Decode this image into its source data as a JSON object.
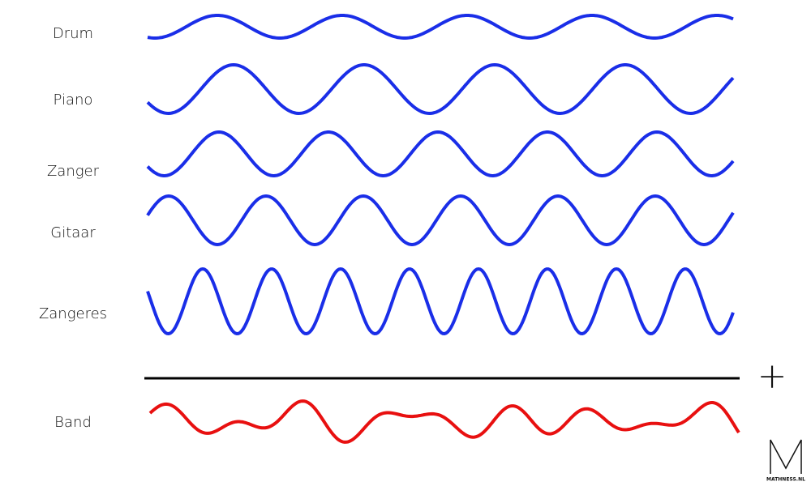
{
  "labels": [
    "Drum",
    "Piano",
    "Zanger",
    "Gitaar",
    "Zangeres"
  ],
  "sum_label": "Band",
  "operator": "+",
  "logo": "MATHNESS.NL"
}
